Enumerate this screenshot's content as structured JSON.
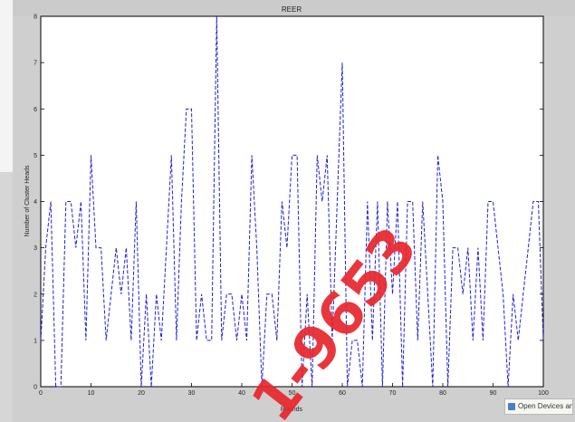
{
  "chart_data": {
    "type": "line",
    "title": "REER",
    "xlabel": "Rounds",
    "ylabel": "Number of Cluster Heads",
    "xlim": [
      0,
      100
    ],
    "ylim": [
      0,
      8
    ],
    "xticks": [
      "0",
      "10",
      "20",
      "30",
      "40",
      "50",
      "60",
      "70",
      "80",
      "90",
      "100"
    ],
    "yticks": [
      "0",
      "1",
      "2",
      "3",
      "4",
      "5",
      "6",
      "7",
      "8"
    ],
    "color": "#1f1fd6",
    "grid": false,
    "series": [
      {
        "x": [
          0,
          1,
          2,
          3,
          4,
          5,
          6,
          7,
          8,
          9,
          10,
          11,
          12,
          13,
          14,
          15,
          16,
          17,
          18,
          19,
          20,
          21,
          22,
          23,
          24,
          25,
          26,
          27,
          28,
          29,
          30,
          31,
          32,
          33,
          34,
          35,
          36,
          37,
          38,
          39,
          40,
          41,
          42,
          43,
          44,
          45,
          46,
          47,
          48,
          49,
          50,
          51,
          52,
          53,
          54,
          55,
          56,
          57,
          58,
          59,
          60,
          61,
          62,
          63,
          64,
          65,
          66,
          67,
          68,
          69,
          70,
          71,
          72,
          73,
          74,
          75,
          76,
          77,
          78,
          79,
          80,
          81,
          82,
          83,
          84,
          85,
          86,
          87,
          88,
          89,
          90,
          91,
          92,
          93,
          94,
          95,
          96,
          97,
          98,
          99,
          100
        ],
        "values": [
          1,
          3,
          4,
          0,
          0,
          4,
          4,
          3,
          4,
          1,
          5,
          3,
          3,
          1,
          2,
          3,
          2,
          3,
          1,
          4,
          0,
          2,
          0,
          2,
          1,
          3,
          5,
          1,
          4,
          6,
          6,
          1,
          2,
          1,
          1,
          8,
          1,
          2,
          2,
          1,
          2,
          1,
          5,
          3,
          0,
          2,
          2,
          1,
          4,
          3,
          5,
          5,
          0,
          2,
          0,
          5,
          4,
          5,
          1,
          4,
          7,
          0,
          1,
          1,
          0,
          4,
          1,
          4,
          0,
          4,
          2,
          4,
          0,
          4,
          4,
          1,
          4,
          2,
          0,
          5,
          4,
          0,
          3,
          3,
          2,
          3,
          1,
          3,
          1,
          4,
          4,
          3,
          2,
          0,
          2,
          1,
          2,
          3,
          4,
          4,
          1
        ]
      }
    ]
  },
  "watermark": "1-9653",
  "tooltip": {
    "icon": "monitor-icon",
    "text": "Open Devices and Printers"
  }
}
